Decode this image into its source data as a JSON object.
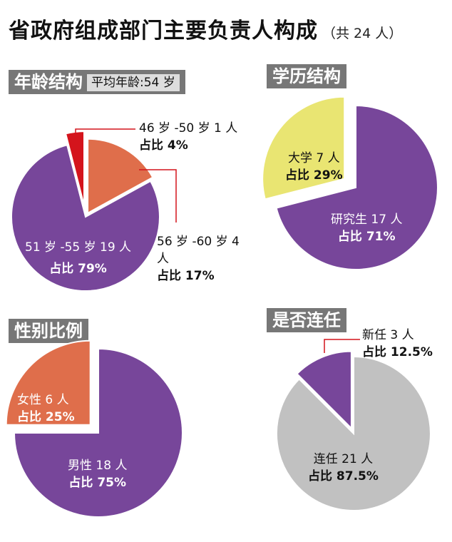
{
  "title": "省政府组成部门主要负责人构成",
  "subtitle": "（共 24 人）",
  "colors": {
    "purple": "#77469a",
    "orange": "#df6e4b",
    "red": "#d4141c",
    "yellow": "#e9e572",
    "grey": "#c1c1c1",
    "header_bg": "#777777"
  },
  "chart_data": [
    {
      "type": "pie",
      "title": "年龄结构",
      "subtitle": "平均年龄:54 岁",
      "slices": [
        {
          "label": "51 岁 -55 岁 19 人",
          "count": 19,
          "pct_label": "占比 79%",
          "value": 79,
          "color": "#77469a"
        },
        {
          "label": "46 岁 -50 岁 1 人",
          "count": 1,
          "pct_label": "占比 4%",
          "value": 4,
          "color": "#d4141c"
        },
        {
          "label": "56 岁 -60 岁 4 人",
          "count": 4,
          "pct_label": "占比 17%",
          "value": 17,
          "color": "#df6e4b"
        }
      ]
    },
    {
      "type": "pie",
      "title": "学历结构",
      "slices": [
        {
          "label": "研究生 17 人",
          "count": 17,
          "pct_label": "占比 71%",
          "value": 71,
          "color": "#77469a"
        },
        {
          "label": "大学 7 人",
          "count": 7,
          "pct_label": "占比 29%",
          "value": 29,
          "color": "#e9e572"
        }
      ]
    },
    {
      "type": "pie",
      "title": "性别比例",
      "slices": [
        {
          "label": "男性 18 人",
          "count": 18,
          "pct_label": "占比 75%",
          "value": 75,
          "color": "#77469a"
        },
        {
          "label": "女性 6 人",
          "count": 6,
          "pct_label": "占比 25%",
          "value": 25,
          "color": "#df6e4b"
        }
      ]
    },
    {
      "type": "pie",
      "title": "是否连任",
      "slices": [
        {
          "label": "连任 21 人",
          "count": 21,
          "pct_label": "占比 87.5%",
          "value": 87.5,
          "color": "#c1c1c1"
        },
        {
          "label": "新任 3 人",
          "count": 3,
          "pct_label": "占比 12.5%",
          "value": 12.5,
          "color": "#77469a"
        }
      ]
    }
  ]
}
